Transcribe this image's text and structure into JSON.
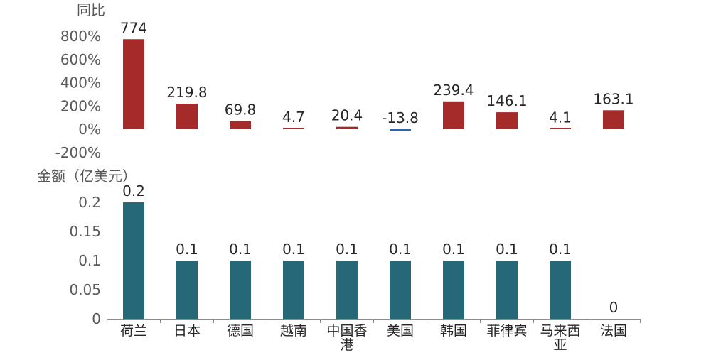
{
  "chart_data": [
    {
      "type": "bar",
      "title": "",
      "ylabel": "同比",
      "ylim": [
        -200,
        800
      ],
      "yticks": [
        800,
        600,
        400,
        200,
        0,
        -200
      ],
      "ytick_labels": [
        "800%",
        "600%",
        "400%",
        "200%",
        "0%",
        "-200%"
      ],
      "categories": [
        "荷兰",
        "日本",
        "德国",
        "越南",
        "中国香港",
        "美国",
        "韩国",
        "菲律宾",
        "马来西亚",
        "法国"
      ],
      "values": [
        774,
        219.8,
        69.8,
        4.7,
        20.4,
        -13.8,
        239.4,
        146.1,
        4.1,
        163.1
      ],
      "data_labels": [
        "774",
        "219.8",
        "69.8",
        "4.7",
        "20.4",
        "-13.8",
        "239.4",
        "146.1",
        "4.1",
        "163.1"
      ],
      "colors": {
        "positive": "#a52a2a",
        "negative": "#2e63b0"
      },
      "grid": false
    },
    {
      "type": "bar",
      "title": "",
      "ylabel": "金额（亿美元）",
      "ylim": [
        0,
        0.2
      ],
      "yticks": [
        0.2,
        0.15,
        0.1,
        0.05,
        0
      ],
      "ytick_labels": [
        "0.2",
        "0.15",
        "0.1",
        "0.05",
        "0"
      ],
      "categories": [
        "荷兰",
        "日本",
        "德国",
        "越南",
        "中国香港",
        "美国",
        "韩国",
        "菲律宾",
        "马来西亚",
        "法国"
      ],
      "category_labels": [
        [
          "荷兰"
        ],
        [
          "日本"
        ],
        [
          "德国"
        ],
        [
          "越南"
        ],
        [
          "中国香",
          "港"
        ],
        [
          "美国"
        ],
        [
          "韩国"
        ],
        [
          "菲律宾"
        ],
        [
          "马来西",
          "亚"
        ],
        [
          "法国"
        ]
      ],
      "values": [
        0.2,
        0.1,
        0.1,
        0.1,
        0.1,
        0.1,
        0.1,
        0.1,
        0.1,
        0
      ],
      "data_labels": [
        "0.2",
        "0.1",
        "0.1",
        "0.1",
        "0.1",
        "0.1",
        "0.1",
        "0.1",
        "0.1",
        "0"
      ],
      "colors": {
        "bar": "#266878",
        "axis": "#8c8c8c"
      },
      "grid": false
    }
  ]
}
